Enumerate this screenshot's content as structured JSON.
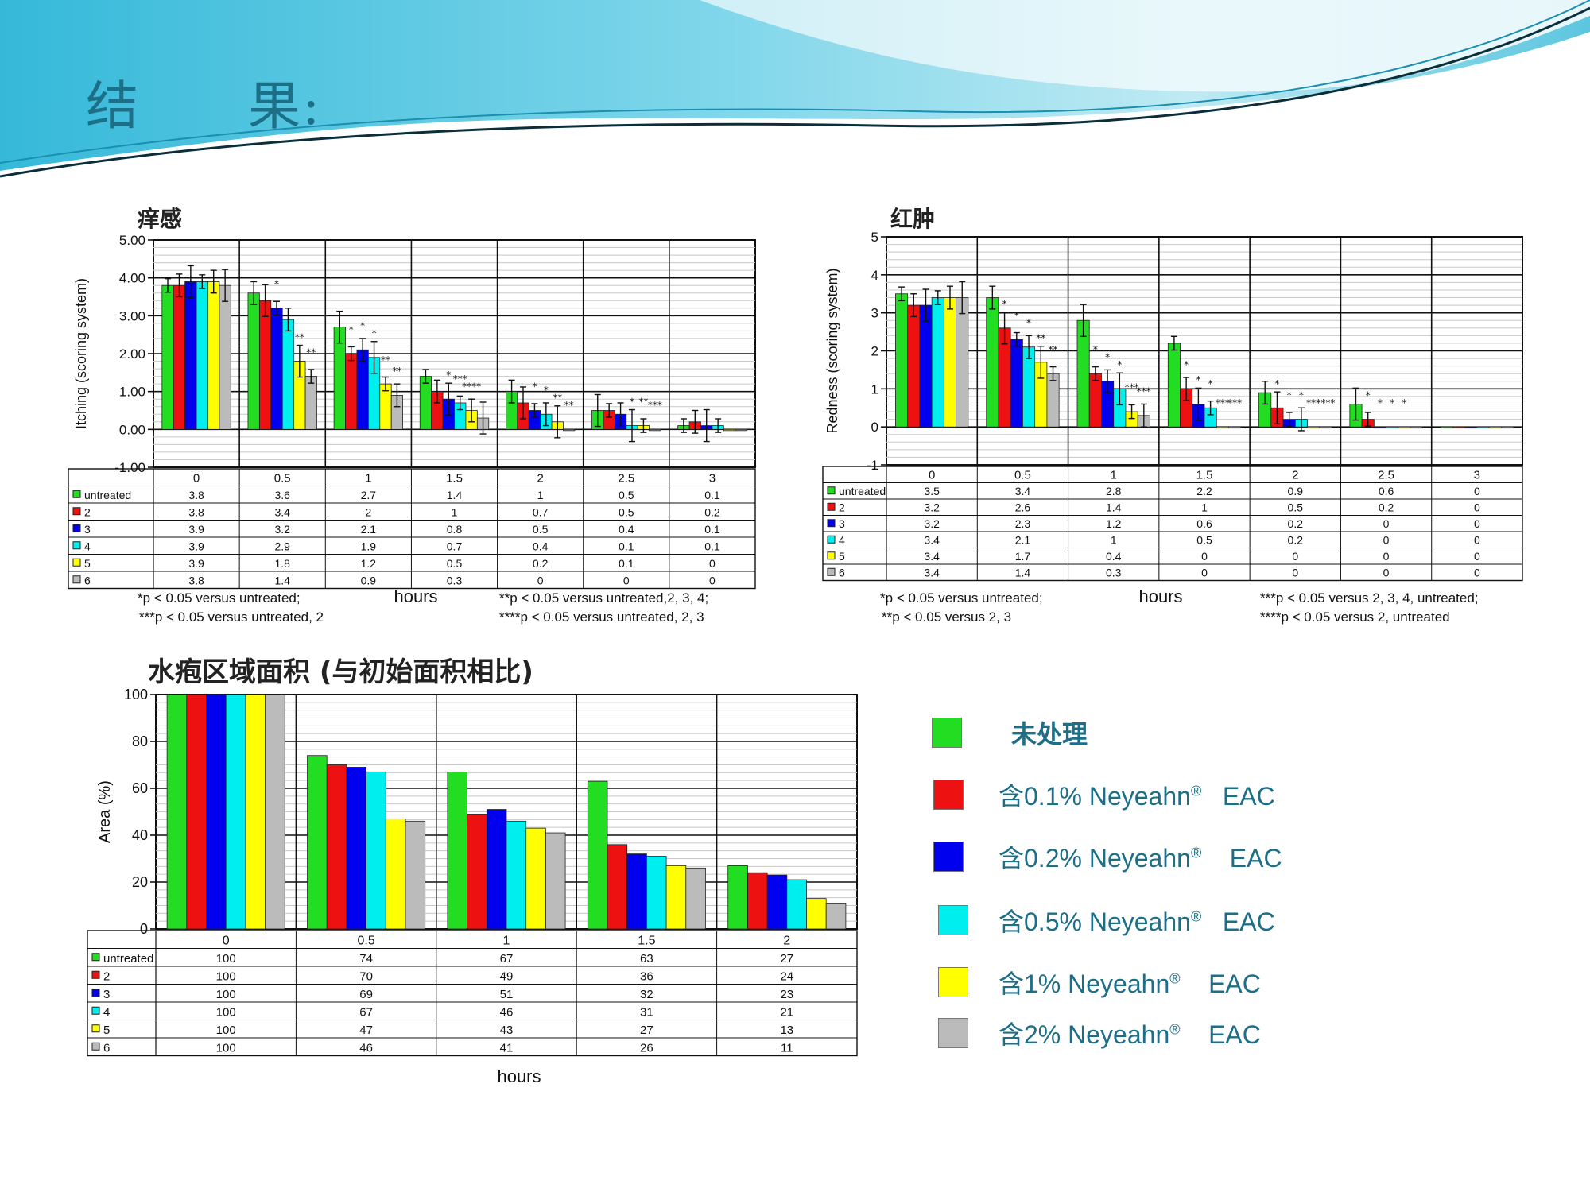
{
  "slide": {
    "title": "结　　果:"
  },
  "colors": {
    "untreated": "#22dd22",
    "c2": "#ee1111",
    "c3": "#0000ee",
    "c4": "#00eeee",
    "c5": "#ffff00",
    "c6": "#bbbbbb",
    "accent": "#1c6f87"
  },
  "legend": {
    "items": [
      {
        "label": "未处理",
        "sup": "",
        "suffix": "",
        "bold": true
      },
      {
        "label": "含0.1% Neyeahn",
        "sup": "®",
        "suffix": "EAC",
        "bold": false
      },
      {
        "label": "含0.2% Neyeahn",
        "sup": "®",
        "suffix": "EAC",
        "bold": false
      },
      {
        "label": "含0.5% Neyeahn",
        "sup": "®",
        "suffix": "EAC",
        "bold": false
      },
      {
        "label": "含1% Neyeahn",
        "sup": "®",
        "suffix": "EAC",
        "bold": false
      },
      {
        "label": "含2% Neyeahn",
        "sup": "®",
        "suffix": "EAC",
        "bold": false
      }
    ]
  },
  "chart_data": [
    {
      "type": "bar",
      "title": "痒感",
      "ylabel": "Itching (scoring system)",
      "xlabel": "hours",
      "ylim": [
        -1,
        5
      ],
      "yticks": [
        "5.00",
        "4.00",
        "3.00",
        "2.00",
        "1.00",
        "0.00",
        "-1.00"
      ],
      "categories": [
        "0",
        "0.5",
        "1",
        "1.5",
        "2",
        "2.5",
        "3"
      ],
      "series": [
        {
          "name": "untreated",
          "values": [
            3.8,
            3.6,
            2.7,
            1.4,
            1,
            0.5,
            0.1
          ]
        },
        {
          "name": "2",
          "values": [
            3.8,
            3.4,
            2,
            1,
            0.7,
            0.5,
            0.2
          ]
        },
        {
          "name": "3",
          "values": [
            3.9,
            3.2,
            2.1,
            0.8,
            0.5,
            0.4,
            0.1
          ]
        },
        {
          "name": "4",
          "values": [
            3.9,
            2.9,
            1.9,
            0.7,
            0.4,
            0.1,
            0.1
          ]
        },
        {
          "name": "5",
          "values": [
            3.9,
            1.8,
            1.2,
            0.5,
            0.2,
            0.1,
            0
          ]
        },
        {
          "name": "6",
          "values": [
            3.8,
            1.4,
            0.9,
            0.3,
            0,
            0,
            0
          ]
        }
      ],
      "table_values": [
        [
          "3.8",
          "3.6",
          "2.7",
          "1.4",
          "1",
          "0.5",
          "0.1"
        ],
        [
          "3.8",
          "3.4",
          "2",
          "1",
          "0.7",
          "0.5",
          "0.2"
        ],
        [
          "3.9",
          "3.2",
          "2.1",
          "0.8",
          "0.5",
          "0.4",
          "0.1"
        ],
        [
          "3.9",
          "2.9",
          "1.9",
          "0.7",
          "0.4",
          "0.1",
          "0.1"
        ],
        [
          "3.9",
          "1.8",
          "1.2",
          "0.5",
          "0.2",
          "0.1",
          "0"
        ],
        [
          "3.8",
          "1.4",
          "0.9",
          "0.3",
          "0",
          "0",
          "0"
        ]
      ],
      "footnotes": {
        "left": [
          "*p < 0.05 versus untreated;",
          "***p < 0.05 versus untreated, 2"
        ],
        "right": [
          "**p < 0.05 versus untreated,2, 3, 4;",
          "****p < 0.05 versus untreated, 2, 3"
        ]
      },
      "error_bars": true,
      "grid": true
    },
    {
      "type": "bar",
      "title": "红肿",
      "ylabel": "Redness (scoring system)",
      "xlabel": "hours",
      "ylim": [
        -1,
        5
      ],
      "yticks": [
        "5",
        "4",
        "3",
        "2",
        "1",
        "0",
        "-1"
      ],
      "categories": [
        "0",
        "0.5",
        "1",
        "1.5",
        "2",
        "2.5",
        "3"
      ],
      "series": [
        {
          "name": "untreated",
          "values": [
            3.5,
            3.4,
            2.8,
            2.2,
            0.9,
            0.6,
            0
          ]
        },
        {
          "name": "2",
          "values": [
            3.2,
            2.6,
            1.4,
            1,
            0.5,
            0.2,
            0
          ]
        },
        {
          "name": "3",
          "values": [
            3.2,
            2.3,
            1.2,
            0.6,
            0.2,
            0,
            0
          ]
        },
        {
          "name": "4",
          "values": [
            3.4,
            2.1,
            1,
            0.5,
            0.2,
            0,
            0
          ]
        },
        {
          "name": "5",
          "values": [
            3.4,
            1.7,
            0.4,
            0,
            0,
            0,
            0
          ]
        },
        {
          "name": "6",
          "values": [
            3.4,
            1.4,
            0.3,
            0,
            0,
            0,
            0
          ]
        }
      ],
      "table_values": [
        [
          "3.5",
          "3.4",
          "2.8",
          "2.2",
          "0.9",
          "0.6",
          "0"
        ],
        [
          "3.2",
          "2.6",
          "1.4",
          "1",
          "0.5",
          "0.2",
          "0"
        ],
        [
          "3.2",
          "2.3",
          "1.2",
          "0.6",
          "0.2",
          "0",
          "0"
        ],
        [
          "3.4",
          "2.1",
          "1",
          "0.5",
          "0.2",
          "0",
          "0"
        ],
        [
          "3.4",
          "1.7",
          "0.4",
          "0",
          "0",
          "0",
          "0"
        ],
        [
          "3.4",
          "1.4",
          "0.3",
          "0",
          "0",
          "0",
          "0"
        ]
      ],
      "footnotes": {
        "left": [
          "*p < 0.05 versus untreated;",
          "**p < 0.05 versus 2, 3"
        ],
        "right": [
          "***p < 0.05 versus 2, 3, 4, untreated;",
          "****p < 0.05 versus 2, untreated"
        ]
      },
      "error_bars": true,
      "grid": true
    },
    {
      "type": "bar",
      "title": "水疱区域面积 (与初始面积相比)",
      "ylabel": "Area (%)",
      "xlabel": "hours",
      "ylim": [
        0,
        100
      ],
      "yticks": [
        "100",
        "80",
        "60",
        "40",
        "20",
        "0"
      ],
      "categories": [
        "0",
        "0.5",
        "1",
        "1.5",
        "2"
      ],
      "series": [
        {
          "name": "untreated",
          "values": [
            100,
            74,
            67,
            63,
            27
          ]
        },
        {
          "name": "2",
          "values": [
            100,
            70,
            49,
            36,
            24
          ]
        },
        {
          "name": "3",
          "values": [
            100,
            69,
            51,
            32,
            23
          ]
        },
        {
          "name": "4",
          "values": [
            100,
            67,
            46,
            31,
            21
          ]
        },
        {
          "name": "5",
          "values": [
            100,
            47,
            43,
            27,
            13
          ]
        },
        {
          "name": "6",
          "values": [
            100,
            46,
            41,
            26,
            11
          ]
        }
      ],
      "table_values": [
        [
          "100",
          "74",
          "67",
          "63",
          "27"
        ],
        [
          "100",
          "70",
          "49",
          "36",
          "24"
        ],
        [
          "100",
          "69",
          "51",
          "32",
          "23"
        ],
        [
          "100",
          "67",
          "46",
          "31",
          "21"
        ],
        [
          "100",
          "47",
          "43",
          "27",
          "13"
        ],
        [
          "100",
          "46",
          "41",
          "26",
          "11"
        ]
      ],
      "footnotes": {
        "left": [],
        "right": []
      },
      "error_bars": false,
      "grid": true
    }
  ]
}
